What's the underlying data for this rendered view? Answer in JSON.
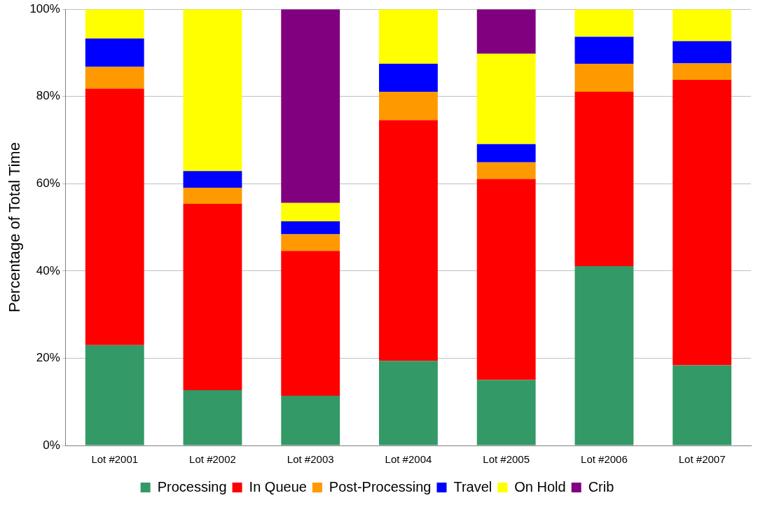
{
  "chart_data": {
    "type": "bar",
    "stacked": true,
    "ylabel": "Percentage of Total Time",
    "categories": [
      "Lot #2001",
      "Lot #2002",
      "Lot #2003",
      "Lot #2004",
      "Lot #2005",
      "Lot #2006",
      "Lot #2007"
    ],
    "series": [
      {
        "name": "Processing",
        "color": "#339966",
        "values": [
          23.0,
          12.7,
          11.4,
          19.4,
          15.0,
          41.1,
          18.4
        ]
      },
      {
        "name": "In Queue",
        "color": "#ff0000",
        "values": [
          58.8,
          42.7,
          33.2,
          55.2,
          46.1,
          40.0,
          65.4
        ]
      },
      {
        "name": "Post-Processing",
        "color": "#ff9900",
        "values": [
          5.0,
          3.7,
          3.8,
          6.5,
          3.8,
          6.4,
          3.8
        ]
      },
      {
        "name": "Travel",
        "color": "#0000ff",
        "values": [
          6.5,
          3.8,
          3.0,
          6.4,
          4.2,
          6.2,
          5.1
        ]
      },
      {
        "name": "On Hold",
        "color": "#ffff00",
        "values": [
          6.7,
          37.1,
          4.2,
          12.5,
          20.7,
          6.3,
          7.3
        ]
      },
      {
        "name": "Crib",
        "color": "#800080",
        "values": [
          0,
          0,
          44.4,
          0,
          10.2,
          0,
          0
        ]
      }
    ],
    "ylim": [
      0,
      100
    ],
    "yticks": [
      {
        "value": 0,
        "label": "0%"
      },
      {
        "value": 20,
        "label": "20%"
      },
      {
        "value": 40,
        "label": "40%"
      },
      {
        "value": 60,
        "label": "60%"
      },
      {
        "value": 80,
        "label": "80%"
      },
      {
        "value": 100,
        "label": "100%"
      }
    ],
    "grid": "y",
    "legend": "bottom"
  }
}
